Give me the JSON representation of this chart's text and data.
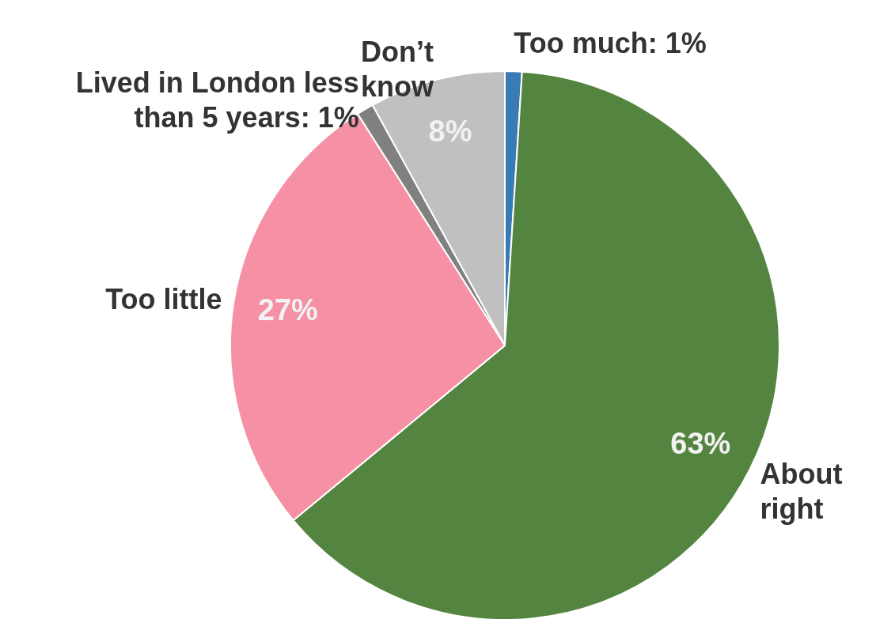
{
  "chart_data": {
    "type": "pie",
    "categories": [
      "Too much: 1%",
      "About right",
      "Too little",
      "Lived in London less than 5 years: 1%",
      "Don’t know"
    ],
    "values": [
      1,
      63,
      27,
      1,
      8
    ],
    "colors": [
      "#3a7ab5",
      "#548540",
      "#f590a5",
      "#808080",
      "#c0c0c0"
    ],
    "value_labels": [
      null,
      "63%",
      "27%",
      null,
      "8%"
    ]
  }
}
